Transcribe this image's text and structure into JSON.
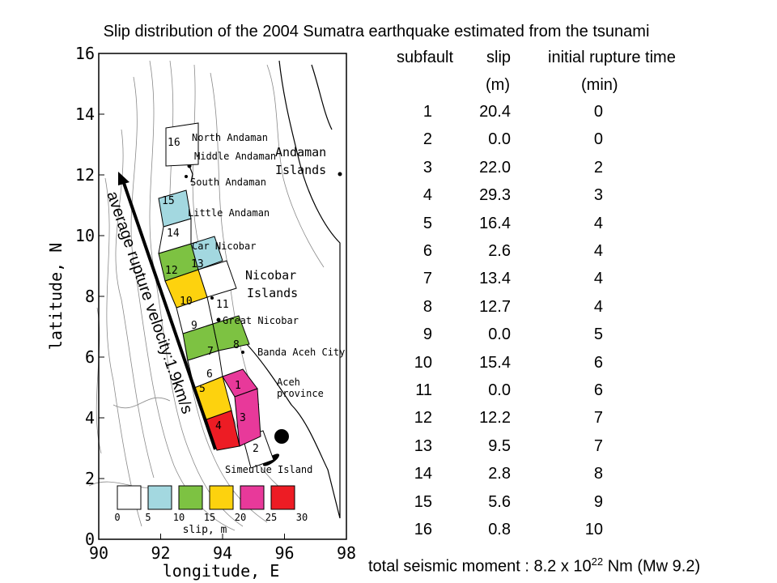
{
  "title": "Slip distribution of the 2004 Sumatra earthquake estimated from the tsunami",
  "map": {
    "x_axis_label": "longitude, E",
    "y_axis_label": "latitude, N",
    "x_ticks": [
      "90",
      "92",
      "94",
      "96",
      "98"
    ],
    "y_ticks": [
      "0",
      "2",
      "4",
      "6",
      "8",
      "10",
      "12",
      "14",
      "16"
    ],
    "place_labels": {
      "north_andaman": "North Andaman",
      "middle_andaman": "Middle Andaman",
      "south_andaman": "South Andaman",
      "andaman_islands_1": "Andaman",
      "andaman_islands_2": "Islands",
      "little_andaman": "Little Andaman",
      "car_nicobar": "Car Nicobar",
      "nicobar_islands_1": "Nicobar",
      "nicobar_islands_2": "Islands",
      "great_nicobar": "Great Nicobar",
      "banda_aceh": "Banda Aceh City",
      "aceh_1": "Aceh",
      "aceh_2": "province",
      "simeulue": "Simeulue Island"
    },
    "arrow_label": "average rupture velocity:1.9km/s",
    "slip_legend": {
      "title": "slip, m",
      "ticks": [
        "0",
        "5",
        "10",
        "15",
        "20",
        "25",
        "30"
      ],
      "colors": [
        "#ffffff",
        "#a3d8e0",
        "#7dc242",
        "#fdd20e",
        "#e8399a",
        "#ed1c24"
      ]
    }
  },
  "table": {
    "headers": {
      "subfault": "subfault",
      "slip": "slip",
      "time": "initial rupture time"
    },
    "units": {
      "slip": "(m)",
      "time": "(min)"
    },
    "rows": [
      {
        "subfault": "1",
        "slip": "20.4",
        "time": "0"
      },
      {
        "subfault": "2",
        "slip": "0.0",
        "time": "0"
      },
      {
        "subfault": "3",
        "slip": "22.0",
        "time": "2"
      },
      {
        "subfault": "4",
        "slip": "29.3",
        "time": "3"
      },
      {
        "subfault": "5",
        "slip": "16.4",
        "time": "4"
      },
      {
        "subfault": "6",
        "slip": "2.6",
        "time": "4"
      },
      {
        "subfault": "7",
        "slip": "13.4",
        "time": "4"
      },
      {
        "subfault": "8",
        "slip": "12.7",
        "time": "4"
      },
      {
        "subfault": "9",
        "slip": "0.0",
        "time": "5"
      },
      {
        "subfault": "10",
        "slip": "15.4",
        "time": "6"
      },
      {
        "subfault": "11",
        "slip": "0.0",
        "time": "6"
      },
      {
        "subfault": "12",
        "slip": "12.2",
        "time": "7"
      },
      {
        "subfault": "13",
        "slip": "9.5",
        "time": "7"
      },
      {
        "subfault": "14",
        "slip": "2.8",
        "time": "8"
      },
      {
        "subfault": "15",
        "slip": "5.6",
        "time": "9"
      },
      {
        "subfault": "16",
        "slip": "0.8",
        "time": "10"
      }
    ]
  },
  "moment": {
    "prefix": "total seismic moment : 8.2 x 10",
    "exponent": "22",
    "suffix": " Nm (Mw 9.2)"
  }
}
